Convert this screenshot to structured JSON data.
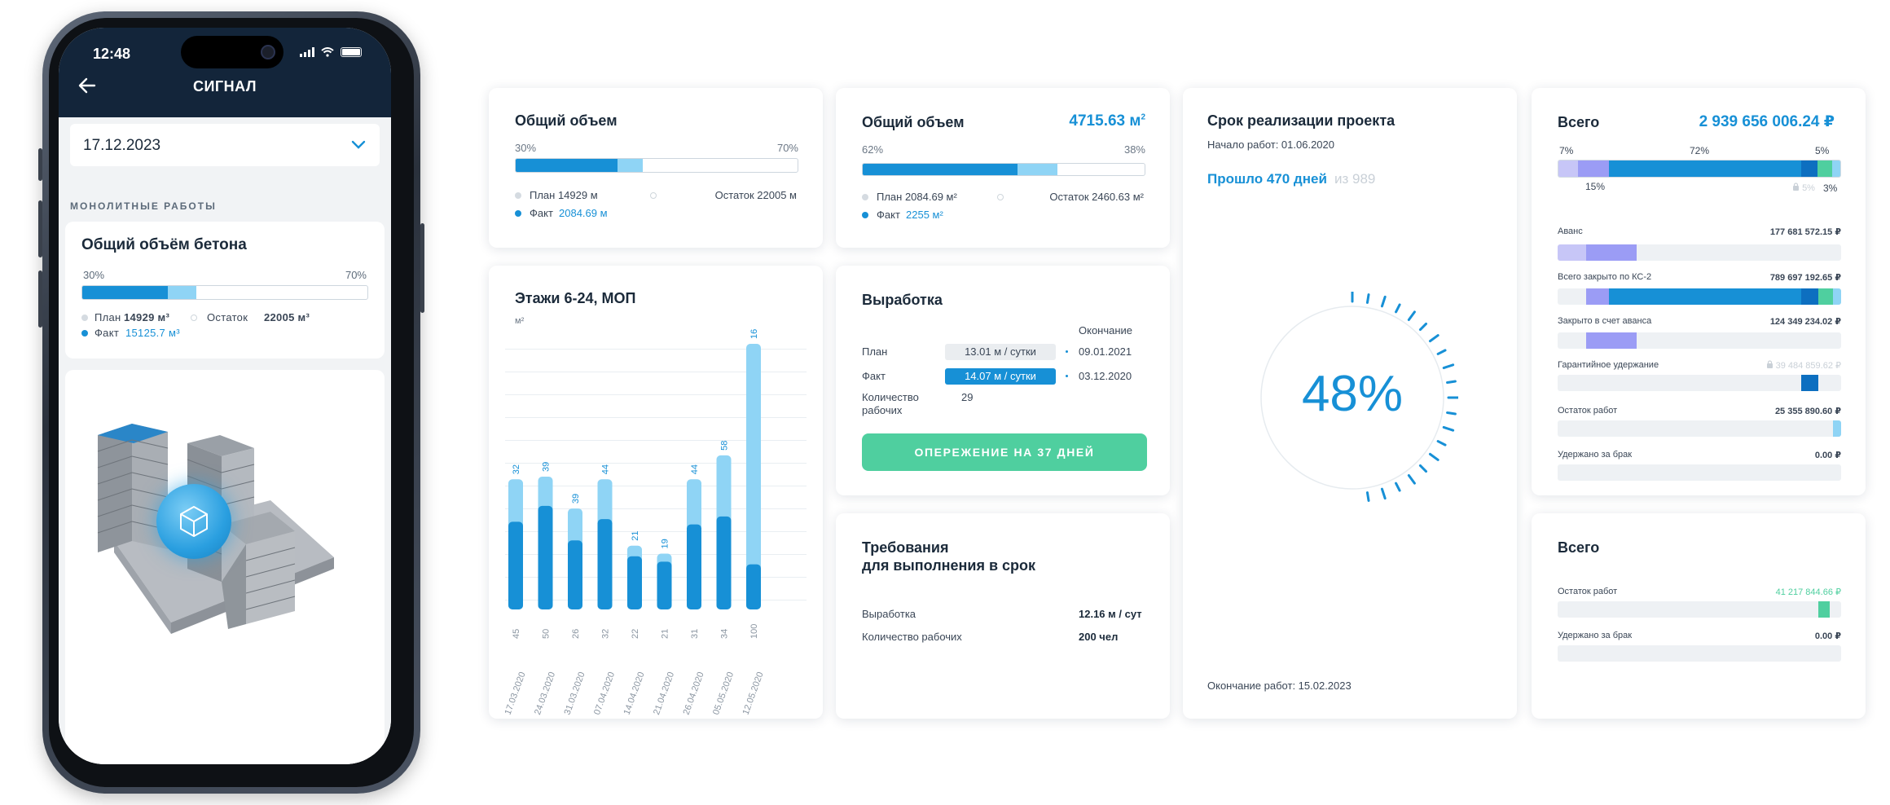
{
  "phone": {
    "time": "12:48",
    "title": "СИГНАЛ",
    "date": "17.12.2023",
    "section": "МОНОЛИТНЫЕ РАБОТЫ",
    "card": {
      "title": "Общий объём бетона",
      "left_pct": "30%",
      "right_pct": "70%",
      "plan_label": "План",
      "plan_value": "14929 м³",
      "remain_label": "Остаток",
      "remain_value": "22005 м³",
      "fact_label": "Факт",
      "fact_value": "15125.7 м³",
      "fact_fraction": 0.3,
      "plan_fraction": 0.4
    }
  },
  "card_volume1": {
    "title": "Общий объем",
    "left_pct": "30%",
    "right_pct": "70%",
    "plan": "План 14929 м",
    "remain": "Остаток 22005 м",
    "fact_label": "Факт",
    "fact_value": "2084.69 м",
    "fact_fraction": 0.36,
    "plan_fraction": 0.45
  },
  "card_volume2": {
    "title": "Общий объем",
    "total": "4715.63 м",
    "total_sup": "2",
    "left_pct": "62%",
    "right_pct": "38%",
    "plan": "План 2084.69 м²",
    "remain": "Остаток 2460.63 м²",
    "fact_label": "Факт",
    "fact_value": "2255 м²",
    "fact_fraction": 0.55,
    "plan_fraction": 0.69
  },
  "card_floors": {
    "title": "Этажи 6-24, МОП",
    "unit": "м²",
    "chart_data": {
      "type": "bar",
      "categories": [
        "17.03.2020",
        "24.03.2020",
        "31.03.2020",
        "07.04.2020",
        "14.04.2020",
        "21.04.2020",
        "26.04.2020",
        "05.05.2020",
        "12.05.2020"
      ],
      "series": [
        {
          "values": [
            32,
            39,
            39,
            44,
            21,
            19,
            44,
            58,
            16
          ]
        },
        {
          "values": [
            45,
            50,
            26,
            32,
            22,
            21,
            31,
            34,
            100
          ]
        }
      ],
      "fact_heights": [
        0.33,
        0.39,
        0.26,
        0.34,
        0.2,
        0.18,
        0.32,
        0.35,
        0.17
      ],
      "plan_heights": [
        0.49,
        0.5,
        0.38,
        0.49,
        0.24,
        0.21,
        0.49,
        0.58,
        1.0
      ],
      "track_heights": [
        0.49,
        0.5,
        0.38,
        0.49,
        0.24,
        0.21,
        0.49,
        0.58,
        1.0
      ]
    }
  },
  "card_output": {
    "title": "Выработка",
    "end_header": "Окончание",
    "plan_label": "План",
    "plan_value": "13.01 м / сутки",
    "plan_date": "09.01.2021",
    "fact_label": "Факт",
    "fact_value": "14.07 м / сутки",
    "fact_date": "03.12.2020",
    "workers_label_1": "Количество",
    "workers_label_2": "рабочих",
    "workers_value": "29",
    "ahead_button": "ОПЕРЕЖЕНИЕ НА 37 ДНЕЙ"
  },
  "card_requirements": {
    "title_1": "Требования",
    "title_2": "для выполнения в срок",
    "output_label": "Выработка",
    "output_value": "12.16 м / сут",
    "workers_label": "Количество рабочих",
    "workers_value": "200 чел"
  },
  "card_term": {
    "title": "Срок реализации проекта",
    "start": "Начало работ: 01.06.2020",
    "passed": "Прошло 470 дней",
    "of_total": "из 989",
    "percent": "48%",
    "progress": 0.48,
    "end": "Окончание работ: 15.02.2023"
  },
  "card_total1": {
    "title": "Всего",
    "total": "2 939 656 006.24 ₽",
    "seg_labels": {
      "a": "7%",
      "b": "72%",
      "c": "5%",
      "d": "15%",
      "e": "5%",
      "f": "3%"
    },
    "rows": [
      {
        "label": "Аванс",
        "value": "177 681 572.15 ₽"
      },
      {
        "label": "Всего закрыто по КС-2",
        "value": "789 697 192.65 ₽"
      },
      {
        "label": "Закрыто в счет аванса",
        "value": "124 349 234.02 ₽"
      },
      {
        "label": "Гарантийное удержание",
        "value": "39 484 859.62 ₽"
      },
      {
        "label": "Остаток работ",
        "value": "25 355 890.60 ₽"
      },
      {
        "label": "Удержано за брак",
        "value": "0.00 ₽"
      }
    ]
  },
  "card_total2": {
    "title": "Всего",
    "rows": [
      {
        "label": "Остаток работ",
        "value": "41 217 844.66 ₽"
      },
      {
        "label": "Удержано за брак",
        "value": "0.00 ₽"
      }
    ]
  },
  "colors": {
    "dark_navy": "#13253a",
    "blue": "#1790d6",
    "light_blue": "#8fd4f5",
    "green": "#4fcf9f",
    "lavender": "#9b9cf5",
    "pale_lavender": "#c7c6f7"
  },
  "icons": [
    "back-arrow-icon",
    "chevron-down-icon",
    "signal-icon",
    "wifi-icon",
    "battery-icon",
    "cube-icon",
    "lock-icon"
  ]
}
